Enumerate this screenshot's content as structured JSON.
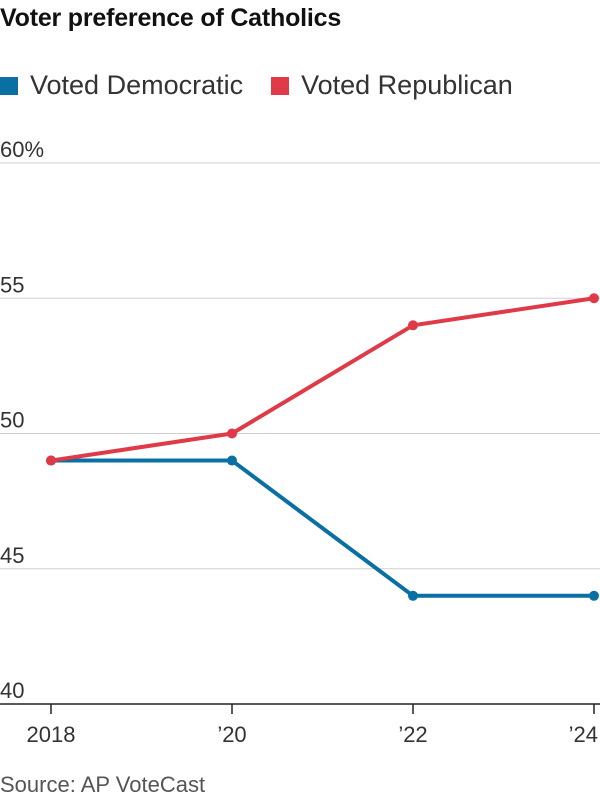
{
  "chart_data": {
    "type": "line",
    "title": "Voter preference of Catholics",
    "categories": [
      "2018",
      "’20",
      "’22",
      "’24"
    ],
    "x": [
      2018,
      2020,
      2022,
      2024
    ],
    "series": [
      {
        "name": "Voted Democratic",
        "color": "#0a6fa3",
        "values": [
          49,
          49,
          44,
          44
        ]
      },
      {
        "name": "Voted Republican",
        "color": "#e03a48",
        "values": [
          49,
          50,
          54,
          55
        ]
      }
    ],
    "yticks": [
      {
        "value": 60,
        "label": "60%"
      },
      {
        "value": 55,
        "label": "55"
      },
      {
        "value": 50,
        "label": "50"
      },
      {
        "value": 45,
        "label": "45"
      },
      {
        "value": 40,
        "label": "40"
      }
    ],
    "ylim": [
      40,
      60
    ],
    "xlabel": "",
    "ylabel": "",
    "grid": true,
    "legend": "top-left"
  },
  "source": "Source: AP VoteCast",
  "colors": {
    "grid": "#d0d0d0",
    "axis": "#222222"
  }
}
